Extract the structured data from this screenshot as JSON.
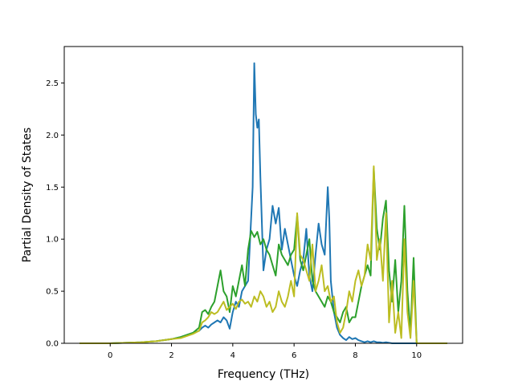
{
  "chart_data": {
    "type": "line",
    "xlabel": "Frequency (THz)",
    "ylabel": "Partial Density of States",
    "xlim": [
      -1.5,
      11.5
    ],
    "ylim": [
      0,
      2.85
    ],
    "xticks": [
      "0",
      "2",
      "4",
      "6",
      "8",
      "10"
    ],
    "yticks": [
      "0.0",
      "0.5",
      "1.0",
      "1.5",
      "2.0",
      "2.5"
    ],
    "grid": false,
    "legend": "none",
    "series": [
      {
        "color": "#1f77b4",
        "x": [
          -1.0,
          0.0,
          0.5,
          1.0,
          1.5,
          2.0,
          2.3,
          2.5,
          2.7,
          2.9,
          3.0,
          3.1,
          3.2,
          3.3,
          3.4,
          3.5,
          3.6,
          3.7,
          3.8,
          3.9,
          4.0,
          4.1,
          4.2,
          4.3,
          4.4,
          4.5,
          4.6,
          4.65,
          4.7,
          4.75,
          4.8,
          4.85,
          4.9,
          5.0,
          5.1,
          5.2,
          5.3,
          5.4,
          5.5,
          5.6,
          5.7,
          5.8,
          5.9,
          6.0,
          6.1,
          6.2,
          6.3,
          6.4,
          6.5,
          6.6,
          6.7,
          6.8,
          6.9,
          7.0,
          7.1,
          7.15,
          7.2,
          7.3,
          7.4,
          7.5,
          7.6,
          7.7,
          7.8,
          7.9,
          8.0,
          8.1,
          8.2,
          8.3,
          8.4,
          8.5,
          8.6,
          8.7,
          8.8,
          8.9,
          9.0,
          9.2,
          9.4,
          9.6,
          9.8,
          10.0,
          10.5,
          11.0
        ],
        "y": [
          0,
          0,
          0.005,
          0.01,
          0.02,
          0.04,
          0.06,
          0.08,
          0.1,
          0.12,
          0.15,
          0.17,
          0.15,
          0.18,
          0.2,
          0.22,
          0.2,
          0.25,
          0.22,
          0.14,
          0.3,
          0.4,
          0.35,
          0.5,
          0.55,
          0.6,
          1.2,
          1.5,
          2.69,
          2.2,
          2.07,
          2.15,
          1.6,
          0.7,
          0.9,
          1.0,
          1.32,
          1.15,
          1.3,
          0.9,
          1.1,
          0.95,
          0.8,
          0.65,
          0.55,
          0.7,
          0.8,
          1.1,
          0.65,
          0.5,
          0.85,
          1.15,
          0.95,
          0.85,
          1.5,
          1.2,
          0.6,
          0.3,
          0.15,
          0.08,
          0.05,
          0.03,
          0.06,
          0.04,
          0.05,
          0.03,
          0.02,
          0.01,
          0.02,
          0.01,
          0.02,
          0.01,
          0.01,
          0.005,
          0.01,
          0,
          0,
          0,
          0,
          0,
          0,
          0
        ]
      },
      {
        "color": "#2ca02c",
        "x": [
          -1.0,
          0.0,
          0.5,
          1.0,
          1.5,
          2.0,
          2.3,
          2.5,
          2.7,
          2.9,
          3.0,
          3.1,
          3.2,
          3.3,
          3.4,
          3.5,
          3.6,
          3.7,
          3.8,
          3.9,
          4.0,
          4.1,
          4.2,
          4.3,
          4.4,
          4.5,
          4.6,
          4.7,
          4.8,
          4.9,
          5.0,
          5.1,
          5.2,
          5.3,
          5.4,
          5.5,
          5.6,
          5.7,
          5.8,
          5.9,
          6.0,
          6.1,
          6.2,
          6.3,
          6.4,
          6.5,
          6.6,
          6.7,
          6.8,
          6.9,
          7.0,
          7.1,
          7.2,
          7.3,
          7.4,
          7.5,
          7.6,
          7.7,
          7.8,
          7.9,
          8.0,
          8.1,
          8.2,
          8.3,
          8.4,
          8.5,
          8.6,
          8.7,
          8.8,
          8.9,
          9.0,
          9.1,
          9.2,
          9.3,
          9.4,
          9.5,
          9.6,
          9.7,
          9.8,
          9.9,
          10.0,
          10.5,
          11.0
        ],
        "y": [
          0,
          0,
          0.005,
          0.01,
          0.02,
          0.04,
          0.06,
          0.08,
          0.1,
          0.15,
          0.3,
          0.32,
          0.28,
          0.35,
          0.4,
          0.55,
          0.7,
          0.5,
          0.45,
          0.3,
          0.55,
          0.45,
          0.6,
          0.75,
          0.55,
          0.9,
          1.08,
          1.02,
          1.07,
          0.95,
          1.0,
          0.9,
          0.85,
          0.75,
          0.65,
          0.95,
          0.85,
          0.8,
          0.75,
          0.85,
          0.9,
          1.23,
          0.8,
          0.7,
          0.85,
          1.0,
          0.6,
          0.5,
          0.45,
          0.4,
          0.35,
          0.45,
          0.4,
          0.3,
          0.25,
          0.2,
          0.3,
          0.35,
          0.2,
          0.25,
          0.25,
          0.4,
          0.55,
          0.65,
          0.75,
          0.65,
          1.68,
          1.1,
          0.9,
          1.2,
          1.37,
          0.7,
          0.4,
          0.8,
          0.3,
          0.6,
          1.32,
          0.5,
          0.1,
          0.82,
          0.0,
          0,
          0
        ]
      },
      {
        "color": "#bcbd22",
        "x": [
          -1.0,
          0.0,
          0.5,
          1.0,
          1.5,
          2.0,
          2.3,
          2.5,
          2.7,
          2.9,
          3.0,
          3.1,
          3.2,
          3.3,
          3.4,
          3.5,
          3.6,
          3.7,
          3.8,
          3.9,
          4.0,
          4.1,
          4.2,
          4.3,
          4.4,
          4.5,
          4.6,
          4.7,
          4.8,
          4.9,
          5.0,
          5.1,
          5.2,
          5.3,
          5.4,
          5.5,
          5.6,
          5.7,
          5.8,
          5.9,
          6.0,
          6.1,
          6.2,
          6.3,
          6.4,
          6.5,
          6.6,
          6.7,
          6.8,
          6.9,
          7.0,
          7.1,
          7.2,
          7.3,
          7.4,
          7.5,
          7.6,
          7.7,
          7.8,
          7.9,
          8.0,
          8.1,
          8.2,
          8.3,
          8.4,
          8.5,
          8.6,
          8.7,
          8.8,
          8.9,
          9.0,
          9.1,
          9.2,
          9.3,
          9.4,
          9.5,
          9.6,
          9.7,
          9.8,
          9.9,
          10.0,
          10.5,
          11.0
        ],
        "y": [
          0,
          0,
          0.005,
          0.01,
          0.02,
          0.04,
          0.05,
          0.07,
          0.09,
          0.12,
          0.2,
          0.22,
          0.25,
          0.3,
          0.28,
          0.3,
          0.35,
          0.4,
          0.32,
          0.35,
          0.38,
          0.33,
          0.4,
          0.42,
          0.38,
          0.4,
          0.35,
          0.45,
          0.4,
          0.5,
          0.45,
          0.35,
          0.4,
          0.3,
          0.35,
          0.5,
          0.4,
          0.35,
          0.45,
          0.6,
          0.45,
          1.25,
          0.85,
          0.8,
          0.7,
          0.6,
          0.95,
          0.5,
          0.6,
          0.75,
          0.5,
          0.55,
          0.4,
          0.45,
          0.2,
          0.1,
          0.15,
          0.3,
          0.5,
          0.4,
          0.6,
          0.7,
          0.55,
          0.65,
          0.95,
          0.8,
          1.7,
          0.8,
          1.0,
          0.6,
          1.25,
          0.2,
          0.6,
          0.1,
          0.3,
          0.05,
          1.0,
          0.3,
          0.05,
          0.6,
          0.0,
          0,
          0
        ]
      }
    ]
  }
}
